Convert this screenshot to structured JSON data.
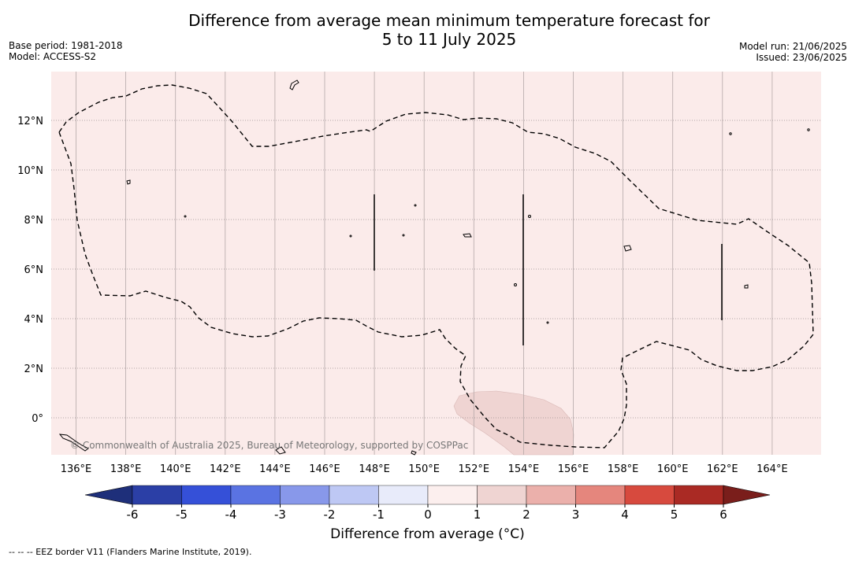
{
  "title": {
    "line1": "Difference from average mean minimum temperature forecast for",
    "line2": "5 to 11 July 2025"
  },
  "meta": {
    "base_period": "Base period: 1981-2018",
    "model": "Model: ACCESS-S2",
    "model_run": "Model run: 21/06/2025",
    "issued": "Issued: 23/06/2025"
  },
  "map": {
    "copyright": "© Commonwealth of Australia 2025, Bureau of Meteorology, supported by COSPPac",
    "lon_labels": [
      "136°E",
      "138°E",
      "140°E",
      "142°E",
      "144°E",
      "146°E",
      "148°E",
      "150°E",
      "152°E",
      "154°E",
      "156°E",
      "158°E",
      "160°E",
      "162°E",
      "164°E"
    ],
    "lat_labels": [
      "12°N",
      "10°N",
      "8°N",
      "6°N",
      "4°N",
      "2°N",
      "0°"
    ],
    "lon_range": [
      135,
      166
    ],
    "lat_range": [
      -1.5,
      14
    ],
    "background_anomaly": "0 to 1",
    "background_color": "#fbebea",
    "warm_patch_anomaly": "1 to 2",
    "warm_patch_color": "#efd4d2",
    "eez_line_style": "dashed"
  },
  "colorbar": {
    "label": "Difference from average (°C)",
    "ticks": [
      "-6",
      "-5",
      "-4",
      "-3",
      "-2",
      "-1",
      "0",
      "1",
      "2",
      "3",
      "4",
      "5",
      "6"
    ],
    "colors": [
      "#2b3fa6",
      "#3550d8",
      "#5a73e2",
      "#8898ea",
      "#bec8f4",
      "#e8ebfa",
      "#fcefee",
      "#efd4d2",
      "#ebb0ab",
      "#e5867d",
      "#d74a3e",
      "#aa2a24"
    ],
    "under_color": "#1e2f7a",
    "over_color": "#7a1e1b"
  },
  "footnote": "--  --  -- EEZ border V11 (Flanders Marine Institute, 2019)."
}
